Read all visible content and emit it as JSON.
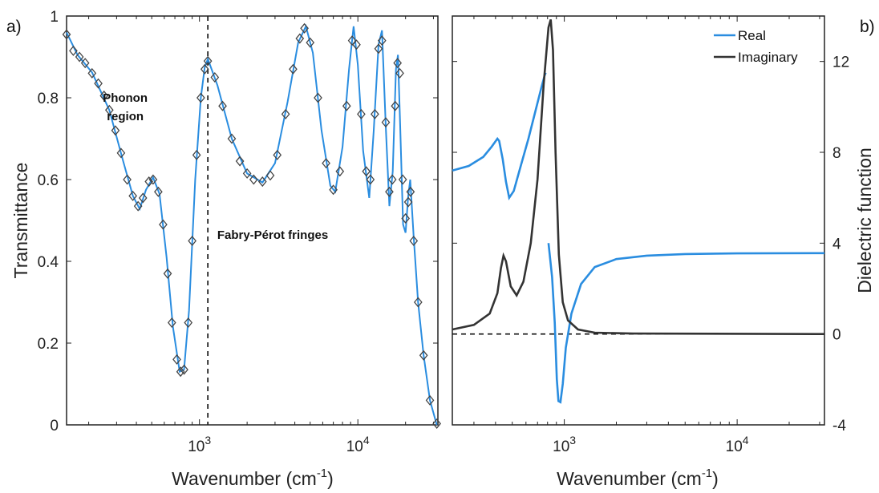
{
  "chart_data": [
    {
      "panel": "a)",
      "type": "line",
      "xlabel": "Wavenumber (cm",
      "xlabel_sup": "-1",
      "xlabel_tail": ")",
      "ylabel": "Transmittance",
      "xscale": "log",
      "xlim": [
        145,
        32000
      ],
      "ylim": [
        0,
        1
      ],
      "y_ticks": [
        "0",
        "0.2",
        "0.4",
        "0.6",
        "0.8",
        "1"
      ],
      "x_ticks": [
        {
          "base": "10",
          "exp": "3",
          "value": 1000
        },
        {
          "base": "10",
          "exp": "4",
          "value": 10000
        }
      ],
      "divider_x": 1130,
      "annotations": [
        {
          "text": "Phonon",
          "x": 340,
          "y": 0.79
        },
        {
          "text": "region",
          "x": 340,
          "y": 0.745
        },
        {
          "text": "Fabry-Pérot fringes",
          "x": 2900,
          "y": 0.455
        }
      ],
      "colors": {
        "fit": "#2a8de0",
        "marker": "#444444",
        "divider": "#222222"
      },
      "series": [
        {
          "style": "markers",
          "points": [
            [
              145,
              0.955
            ],
            [
              160,
              0.915
            ],
            [
              175,
              0.9
            ],
            [
              190,
              0.885
            ],
            [
              210,
              0.86
            ],
            [
              230,
              0.835
            ],
            [
              250,
              0.805
            ],
            [
              270,
              0.77
            ],
            [
              295,
              0.72
            ],
            [
              320,
              0.665
            ],
            [
              350,
              0.6
            ],
            [
              380,
              0.56
            ],
            [
              410,
              0.535
            ],
            [
              440,
              0.555
            ],
            [
              480,
              0.595
            ],
            [
              510,
              0.6
            ],
            [
              550,
              0.57
            ],
            [
              590,
              0.49
            ],
            [
              630,
              0.37
            ],
            [
              670,
              0.25
            ],
            [
              720,
              0.16
            ],
            [
              760,
              0.13
            ],
            [
              800,
              0.135
            ],
            [
              850,
              0.25
            ],
            [
              900,
              0.45
            ],
            [
              960,
              0.66
            ],
            [
              1020,
              0.8
            ],
            [
              1080,
              0.87
            ],
            [
              1130,
              0.89
            ],
            [
              1250,
              0.85
            ],
            [
              1400,
              0.78
            ],
            [
              1600,
              0.7
            ],
            [
              1800,
              0.645
            ],
            [
              2000,
              0.615
            ],
            [
              2200,
              0.6
            ],
            [
              2500,
              0.595
            ],
            [
              2800,
              0.61
            ],
            [
              3100,
              0.66
            ],
            [
              3500,
              0.76
            ],
            [
              3900,
              0.87
            ],
            [
              4300,
              0.945
            ],
            [
              4600,
              0.97
            ],
            [
              5000,
              0.935
            ],
            [
              5600,
              0.8
            ],
            [
              6300,
              0.64
            ],
            [
              7000,
              0.575
            ],
            [
              7700,
              0.62
            ],
            [
              8500,
              0.78
            ],
            [
              9200,
              0.94
            ],
            [
              9800,
              0.93
            ],
            [
              10500,
              0.76
            ],
            [
              11300,
              0.62
            ],
            [
              12000,
              0.6
            ],
            [
              12800,
              0.76
            ],
            [
              13500,
              0.92
            ],
            [
              14200,
              0.94
            ],
            [
              15000,
              0.74
            ],
            [
              15800,
              0.57
            ],
            [
              16500,
              0.6
            ],
            [
              17200,
              0.78
            ],
            [
              17800,
              0.885
            ],
            [
              18400,
              0.86
            ],
            [
              19200,
              0.6
            ],
            [
              20000,
              0.505
            ],
            [
              20800,
              0.545
            ],
            [
              21500,
              0.57
            ],
            [
              22500,
              0.45
            ],
            [
              24000,
              0.3
            ],
            [
              26000,
              0.17
            ],
            [
              28500,
              0.06
            ],
            [
              31500,
              0.003
            ]
          ]
        },
        {
          "style": "line",
          "points": [
            [
              145,
              0.96
            ],
            [
              170,
              0.905
            ],
            [
              210,
              0.862
            ],
            [
              270,
              0.77
            ],
            [
              330,
              0.645
            ],
            [
              380,
              0.56
            ],
            [
              420,
              0.528
            ],
            [
              460,
              0.575
            ],
            [
              510,
              0.605
            ],
            [
              560,
              0.565
            ],
            [
              620,
              0.41
            ],
            [
              680,
              0.24
            ],
            [
              750,
              0.13
            ],
            [
              800,
              0.135
            ],
            [
              860,
              0.28
            ],
            [
              940,
              0.6
            ],
            [
              1020,
              0.8
            ],
            [
              1080,
              0.875
            ],
            [
              1130,
              0.895
            ],
            [
              1300,
              0.83
            ],
            [
              1600,
              0.7
            ],
            [
              2000,
              0.615
            ],
            [
              2500,
              0.593
            ],
            [
              3000,
              0.64
            ],
            [
              3600,
              0.79
            ],
            [
              4200,
              0.935
            ],
            [
              4700,
              0.975
            ],
            [
              5200,
              0.91
            ],
            [
              5900,
              0.72
            ],
            [
              6700,
              0.585
            ],
            [
              7200,
              0.57
            ],
            [
              8000,
              0.68
            ],
            [
              8800,
              0.87
            ],
            [
              9400,
              0.975
            ],
            [
              10000,
              0.88
            ],
            [
              10800,
              0.67
            ],
            [
              11800,
              0.555
            ],
            [
              12600,
              0.72
            ],
            [
              13500,
              0.93
            ],
            [
              14200,
              0.965
            ],
            [
              15000,
              0.73
            ],
            [
              15800,
              0.535
            ],
            [
              16600,
              0.62
            ],
            [
              17400,
              0.87
            ],
            [
              17900,
              0.905
            ],
            [
              18500,
              0.73
            ],
            [
              19300,
              0.49
            ],
            [
              20000,
              0.47
            ],
            [
              20800,
              0.56
            ],
            [
              21400,
              0.6
            ],
            [
              22500,
              0.46
            ],
            [
              24000,
              0.3
            ],
            [
              26000,
              0.17
            ],
            [
              28500,
              0.06
            ],
            [
              31500,
              0.0
            ]
          ]
        }
      ]
    },
    {
      "panel": "b)",
      "type": "line",
      "xlabel": "Wavenumber (cm",
      "xlabel_sup": "-1",
      "xlabel_tail": ")",
      "ylabel": "Dielectric function",
      "xscale": "log",
      "xlim": [
        225,
        32000
      ],
      "ylim": [
        -4,
        14
      ],
      "y_ticks": [
        "-4",
        "0",
        "4",
        "8",
        "12"
      ],
      "x_ticks": [
        {
          "base": "10",
          "exp": "3",
          "value": 1000
        },
        {
          "base": "10",
          "exp": "4",
          "value": 10000
        }
      ],
      "zero_line": 0,
      "legend": [
        {
          "name": "Real",
          "color": "#2a8de0"
        },
        {
          "name": "Imaginary",
          "color": "#333333"
        }
      ],
      "series": [
        {
          "name": "Real",
          "color": "#2a8de0",
          "segments": [
            [
              [
                225,
                7.2
              ],
              [
                280,
                7.4
              ],
              [
                340,
                7.8
              ],
              [
                380,
                8.25
              ],
              [
                410,
                8.6
              ],
              [
                420,
                8.5
              ],
              [
                440,
                7.7
              ],
              [
                460,
                6.7
              ],
              [
                480,
                6.0
              ],
              [
                510,
                6.3
              ],
              [
                560,
                7.4
              ],
              [
                620,
                8.6
              ],
              [
                680,
                9.8
              ],
              [
                740,
                10.9
              ],
              [
                770,
                11.4
              ],
              [
                780,
                11.5
              ]
            ],
            [
              [
                810,
                4.0
              ],
              [
                850,
                2.5
              ],
              [
                880,
                0.5
              ],
              [
                905,
                -2.0
              ],
              [
                925,
                -2.95
              ],
              [
                950,
                -3.0
              ],
              [
                980,
                -2.2
              ],
              [
                1020,
                -0.6
              ],
              [
                1100,
                0.9
              ],
              [
                1250,
                2.2
              ],
              [
                1500,
                2.95
              ],
              [
                2000,
                3.3
              ],
              [
                3000,
                3.45
              ],
              [
                5000,
                3.52
              ],
              [
                10000,
                3.55
              ],
              [
                32000,
                3.56
              ]
            ]
          ]
        },
        {
          "name": "Imaginary",
          "color": "#333333",
          "segments": [
            [
              [
                225,
                0.2
              ],
              [
                300,
                0.4
              ],
              [
                370,
                0.9
              ],
              [
                410,
                1.8
              ],
              [
                430,
                2.9
              ],
              [
                445,
                3.45
              ],
              [
                460,
                3.2
              ],
              [
                490,
                2.1
              ],
              [
                530,
                1.7
              ],
              [
                580,
                2.3
              ],
              [
                640,
                4.0
              ],
              [
                700,
                6.8
              ],
              [
                760,
                11.0
              ],
              [
                810,
                13.5
              ],
              [
                835,
                13.85
              ],
              [
                860,
                12.5
              ],
              [
                890,
                8.0
              ],
              [
                930,
                3.5
              ],
              [
                980,
                1.4
              ],
              [
                1050,
                0.6
              ],
              [
                1200,
                0.2
              ],
              [
                1500,
                0.06
              ],
              [
                2500,
                0.02
              ],
              [
                32000,
                0.0
              ]
            ]
          ]
        }
      ]
    }
  ]
}
